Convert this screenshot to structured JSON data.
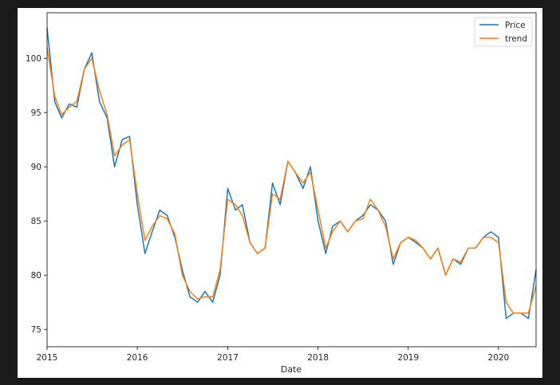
{
  "chart_data": {
    "type": "line",
    "xlabel": "Date",
    "ylabel": "",
    "title": "",
    "xlim": [
      "2015-01-01",
      "2020-06-01"
    ],
    "ylim": [
      73.4,
      104.2
    ],
    "x_ticks": [
      "2015",
      "2016",
      "2017",
      "2018",
      "2019",
      "2020"
    ],
    "y_ticks": [
      75,
      80,
      85,
      90,
      95,
      100
    ],
    "grid": false,
    "legend_position": "top-right",
    "colors": {
      "Price": "#1f77b4",
      "trend": "#ff7f0e"
    },
    "x": [
      "2015-01",
      "2015-02",
      "2015-03",
      "2015-04",
      "2015-05",
      "2015-06",
      "2015-07",
      "2015-08",
      "2015-09",
      "2015-10",
      "2015-11",
      "2015-12",
      "2016-01",
      "2016-02",
      "2016-03",
      "2016-04",
      "2016-05",
      "2016-06",
      "2016-07",
      "2016-08",
      "2016-09",
      "2016-10",
      "2016-11",
      "2016-12",
      "2017-01",
      "2017-02",
      "2017-03",
      "2017-04",
      "2017-05",
      "2017-06",
      "2017-07",
      "2017-08",
      "2017-09",
      "2017-10",
      "2017-11",
      "2017-12",
      "2018-01",
      "2018-02",
      "2018-03",
      "2018-04",
      "2018-05",
      "2018-06",
      "2018-07",
      "2018-08",
      "2018-09",
      "2018-10",
      "2018-11",
      "2018-12",
      "2019-01",
      "2019-02",
      "2019-03",
      "2019-04",
      "2019-05",
      "2019-06",
      "2019-07",
      "2019-08",
      "2019-09",
      "2019-10",
      "2019-11",
      "2019-12",
      "2020-01",
      "2020-02",
      "2020-03",
      "2020-04",
      "2020-05",
      "2020-06"
    ],
    "series": [
      {
        "name": "Price",
        "values": [
          102.8,
          96.0,
          94.5,
          95.8,
          95.5,
          99.0,
          100.5,
          96.0,
          94.5,
          90.0,
          92.5,
          92.8,
          86.5,
          82.0,
          84.0,
          86.0,
          85.5,
          83.5,
          80.5,
          78.0,
          77.5,
          78.5,
          77.5,
          80.0,
          88.0,
          86.0,
          86.5,
          83.0,
          82.0,
          82.5,
          88.5,
          86.5,
          90.5,
          89.5,
          88.0,
          90.0,
          85.0,
          82.0,
          84.5,
          85.0,
          84.0,
          85.0,
          85.5,
          86.5,
          86.0,
          85.0,
          81.0,
          83.0,
          83.5,
          83.0,
          82.5,
          81.5,
          82.5,
          80.0,
          81.5,
          81.0,
          82.5,
          82.5,
          83.5,
          84.0,
          83.5,
          76.0,
          76.5,
          76.5,
          76.0,
          80.5
        ]
      },
      {
        "name": "trend",
        "values": [
          101.0,
          96.5,
          94.8,
          95.5,
          96.0,
          99.0,
          100.0,
          97.0,
          94.8,
          91.0,
          92.0,
          92.5,
          87.5,
          83.2,
          84.5,
          85.5,
          85.2,
          83.8,
          80.0,
          78.5,
          77.8,
          78.0,
          78.0,
          80.5,
          87.0,
          86.5,
          85.5,
          83.0,
          82.0,
          82.5,
          87.5,
          87.0,
          90.5,
          89.5,
          88.5,
          89.5,
          86.0,
          82.5,
          84.0,
          85.0,
          84.0,
          85.0,
          85.2,
          87.0,
          86.0,
          84.5,
          81.5,
          83.0,
          83.5,
          83.2,
          82.5,
          81.5,
          82.5,
          80.0,
          81.5,
          81.2,
          82.5,
          82.5,
          83.5,
          83.5,
          83.0,
          77.5,
          76.5,
          76.5,
          76.5,
          79.0
        ]
      }
    ]
  }
}
